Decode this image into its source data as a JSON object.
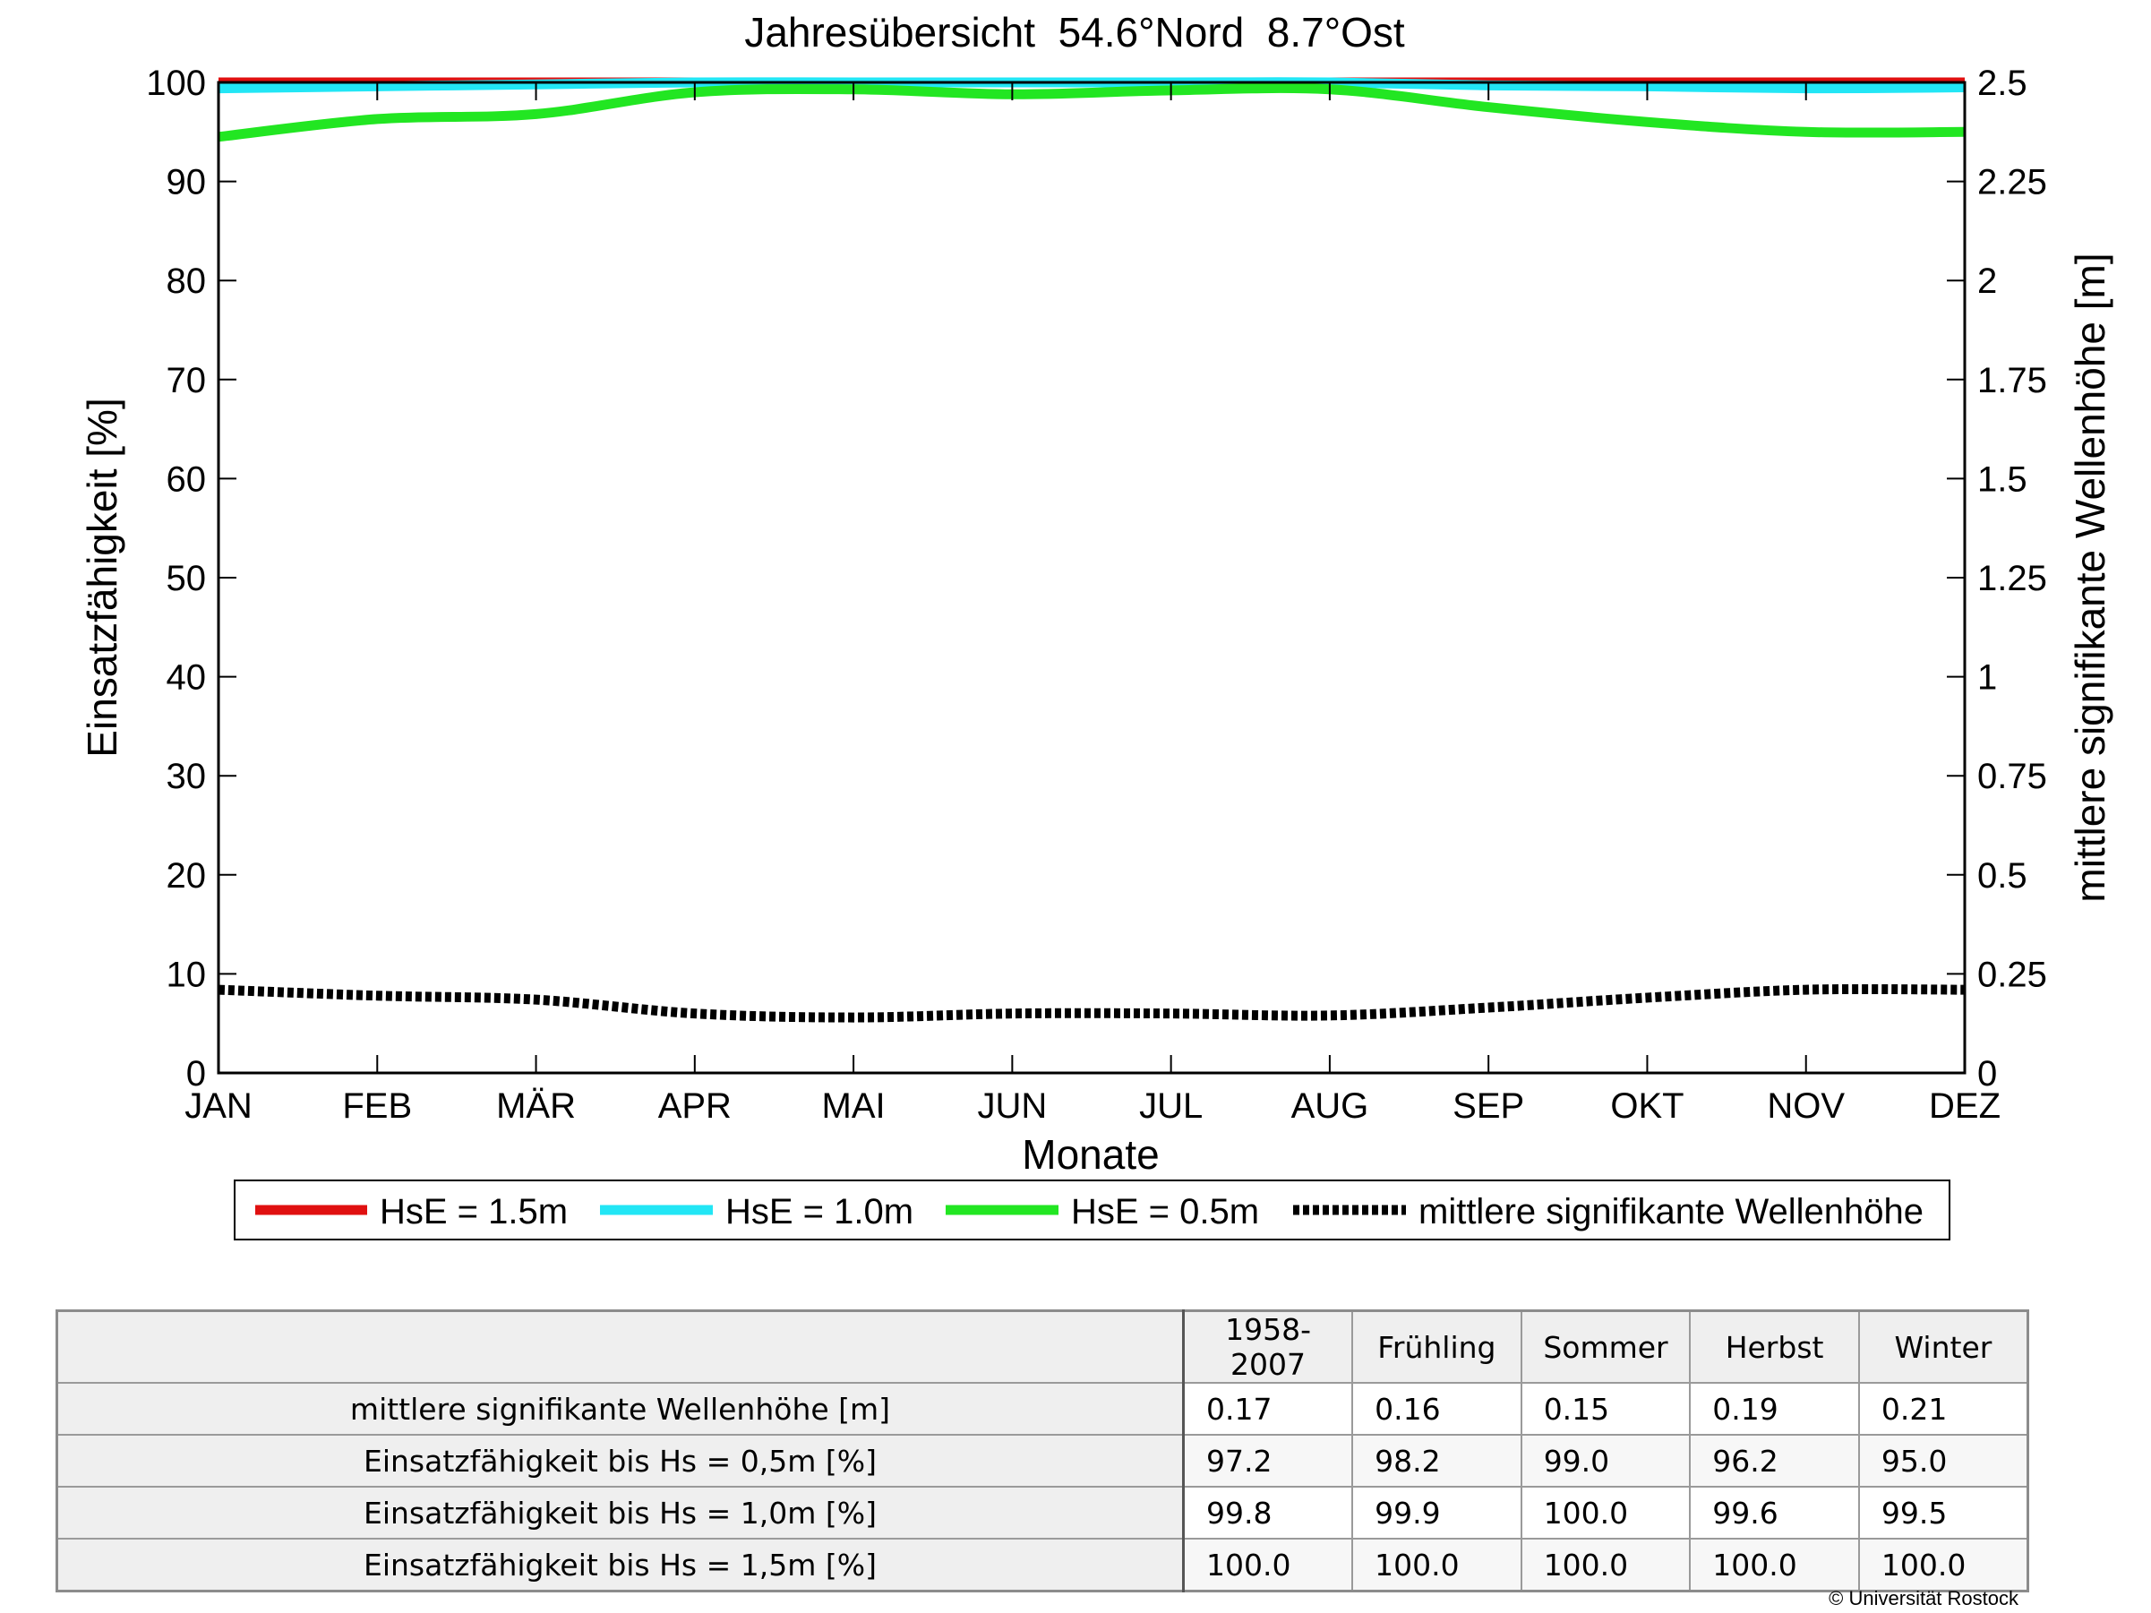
{
  "colors": {
    "hse_1_5": "#e01010",
    "hse_1_0": "#22e6f5",
    "hse_0_5": "#22e622",
    "mean_wave": "#000000"
  },
  "chart_data": {
    "type": "line",
    "title": "Jahresübersicht  54.6°Nord  8.7°Ost",
    "xlabel": "Monate",
    "ylabel": "Einsatzfähigkeit [%]",
    "y2label": "mittlere signifikante Wellenhöhe [m]",
    "categories": [
      "JAN",
      "FEB",
      "MÄR",
      "APR",
      "MAI",
      "JUN",
      "JUL",
      "AUG",
      "SEP",
      "OKT",
      "NOV",
      "DEZ"
    ],
    "ylim": [
      0,
      100
    ],
    "yticks": [
      "0",
      "10",
      "20",
      "30",
      "40",
      "50",
      "60",
      "70",
      "80",
      "90",
      "100"
    ],
    "y2lim": [
      0,
      2.5
    ],
    "y2ticks": [
      "0",
      "0.25",
      "0.5",
      "0.75",
      "1",
      "1.25",
      "1.5",
      "1.75",
      "2",
      "2.25",
      "2.5"
    ],
    "grid": false,
    "legend_position": "bottom",
    "series": [
      {
        "name": "HsE = 1.5m",
        "axis": "left",
        "style": "solid",
        "color_key": "hse_1_5",
        "values": [
          100,
          100,
          100,
          100,
          100,
          100,
          100,
          100,
          100,
          100,
          100,
          100
        ]
      },
      {
        "name": "HsE = 1.0m",
        "axis": "left",
        "style": "solid",
        "color_key": "hse_1_0",
        "values": [
          99.4,
          99.6,
          99.8,
          100,
          100,
          100,
          100,
          100,
          99.7,
          99.6,
          99.4,
          99.5
        ]
      },
      {
        "name": "HsE = 0.5m",
        "axis": "left",
        "style": "solid",
        "color_key": "hse_0_5",
        "values": [
          94.5,
          96.3,
          96.8,
          99.0,
          99.3,
          98.8,
          99.2,
          99.3,
          97.5,
          96.0,
          95.0,
          95.0
        ]
      },
      {
        "name": "mittlere signifikante Wellenhöhe",
        "axis": "right",
        "style": "dotted",
        "color_key": "mean_wave",
        "values": [
          0.21,
          0.195,
          0.185,
          0.15,
          0.14,
          0.15,
          0.15,
          0.145,
          0.165,
          0.19,
          0.21,
          0.21
        ]
      }
    ]
  },
  "table": {
    "columns": [
      "1958-2007",
      "Frühling",
      "Sommer",
      "Herbst",
      "Winter"
    ],
    "rows": [
      {
        "label": "mittlere signifikante Wellenhöhe [m]",
        "values": [
          "0.17",
          "0.16",
          "0.15",
          "0.19",
          "0.21"
        ]
      },
      {
        "label": "Einsatzfähigkeit bis Hs = 0,5m [%]",
        "values": [
          "97.2",
          "98.2",
          "99.0",
          "96.2",
          "95.0"
        ]
      },
      {
        "label": "Einsatzfähigkeit bis Hs = 1,0m [%]",
        "values": [
          "99.8",
          "99.9",
          "100.0",
          "99.6",
          "99.5"
        ]
      },
      {
        "label": "Einsatzfähigkeit bis Hs = 1,5m [%]",
        "values": [
          "100.0",
          "100.0",
          "100.0",
          "100.0",
          "100.0"
        ]
      }
    ]
  },
  "copyright": "© Universität Rostock"
}
